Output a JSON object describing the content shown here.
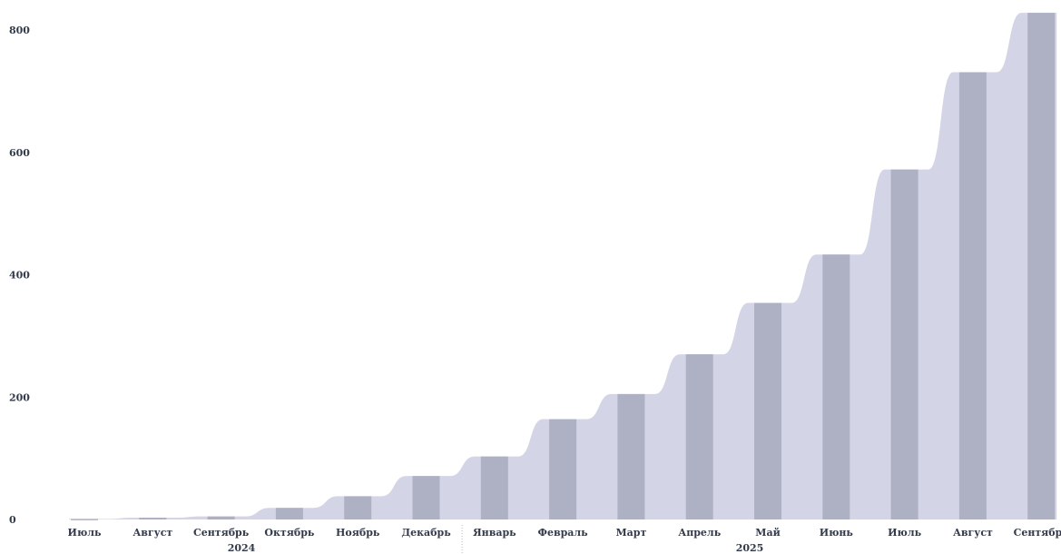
{
  "chart_data": {
    "type": "area",
    "categories": [
      "Июль",
      "Август",
      "Сентябрь",
      "Октябрь",
      "Ноябрь",
      "Декабрь",
      "Январь",
      "Февраль",
      "Март",
      "Апрель",
      "Май",
      "Июнь",
      "Июль",
      "Август",
      "Сентябрь"
    ],
    "values": [
      1,
      3,
      5,
      19,
      38,
      71,
      103,
      164,
      205,
      270,
      354,
      433,
      572,
      731,
      828
    ],
    "years": [
      {
        "label": "2024",
        "start": 0,
        "end": 5
      },
      {
        "label": "2025",
        "start": 6,
        "end": 14
      }
    ],
    "yticks": [
      0,
      200,
      400,
      600,
      800
    ],
    "ylim": [
      0,
      850
    ],
    "title": "",
    "xlabel": "",
    "ylabel": "",
    "grid": false,
    "colors": {
      "area": "#d3d5e6",
      "bar": "#aeb1c4",
      "text": "#333a4a",
      "separator": "#b8b8c8"
    }
  }
}
